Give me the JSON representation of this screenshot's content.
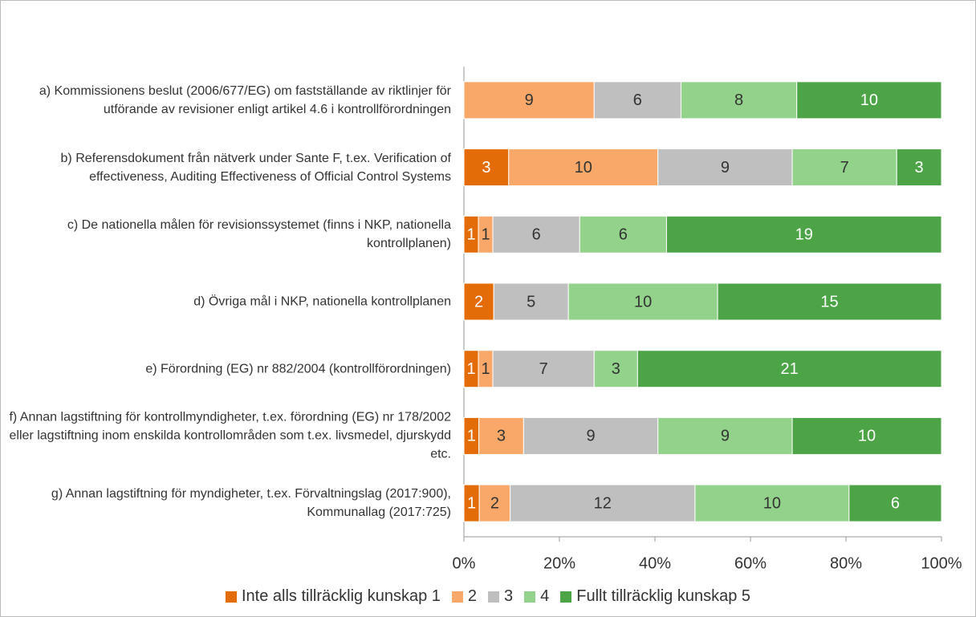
{
  "chart_data": {
    "type": "bar",
    "orientation": "horizontal",
    "stacking": "percent",
    "categories": [
      "a) Kommissionens beslut (2006/677/EG) om fastställande av riktlinjer för utförande av revisioner enligt artikel 4.6 i kontrollförordningen",
      "b) Referensdokument från nätverk under Sante F, t.ex. Verification of effectiveness, Auditing Effectiveness of Official Control Systems",
      "c) De nationella målen för revisionssystemet (finns i NKP, nationella kontrollplanen)",
      "d) Övriga mål i NKP, nationella kontrollplanen",
      "e) Förordning (EG) nr 882/2004 (kontrollförordningen)",
      "f) Annan lagstiftning för kontrollmyndigheter, t.ex. förordning (EG) nr 178/2002 eller lagstiftning inom enskilda kontrollområden som t.ex. livsmedel, djurskydd etc.",
      "g) Annan lagstiftning för myndigheter, t.ex. Förvaltningslag (2017:900), Kommunallag (2017:725)"
    ],
    "series": [
      {
        "name": "Inte alls tillräcklig kunskap 1",
        "color": "#e36c09",
        "values": [
          0,
          3,
          1,
          2,
          1,
          1,
          1
        ]
      },
      {
        "name": "2",
        "color": "#f9a86a",
        "values": [
          9,
          10,
          1,
          0,
          1,
          3,
          2
        ]
      },
      {
        "name": "3",
        "color": "#bfbfbf",
        "values": [
          6,
          9,
          6,
          5,
          7,
          9,
          12
        ]
      },
      {
        "name": "4",
        "color": "#92d28a",
        "values": [
          8,
          7,
          6,
          10,
          3,
          9,
          10
        ]
      },
      {
        "name": "Fullt tillräcklig kunskap 5",
        "color": "#4ca446",
        "values": [
          10,
          3,
          19,
          15,
          21,
          10,
          6
        ]
      }
    ],
    "xlim": [
      0,
      100
    ],
    "xticks": [
      {
        "value": 0,
        "label": "0%"
      },
      {
        "value": 20,
        "label": "20%"
      },
      {
        "value": 40,
        "label": "40%"
      },
      {
        "value": 60,
        "label": "60%"
      },
      {
        "value": 80,
        "label": "80%"
      },
      {
        "value": 100,
        "label": "100%"
      }
    ],
    "legend": "bottom"
  }
}
